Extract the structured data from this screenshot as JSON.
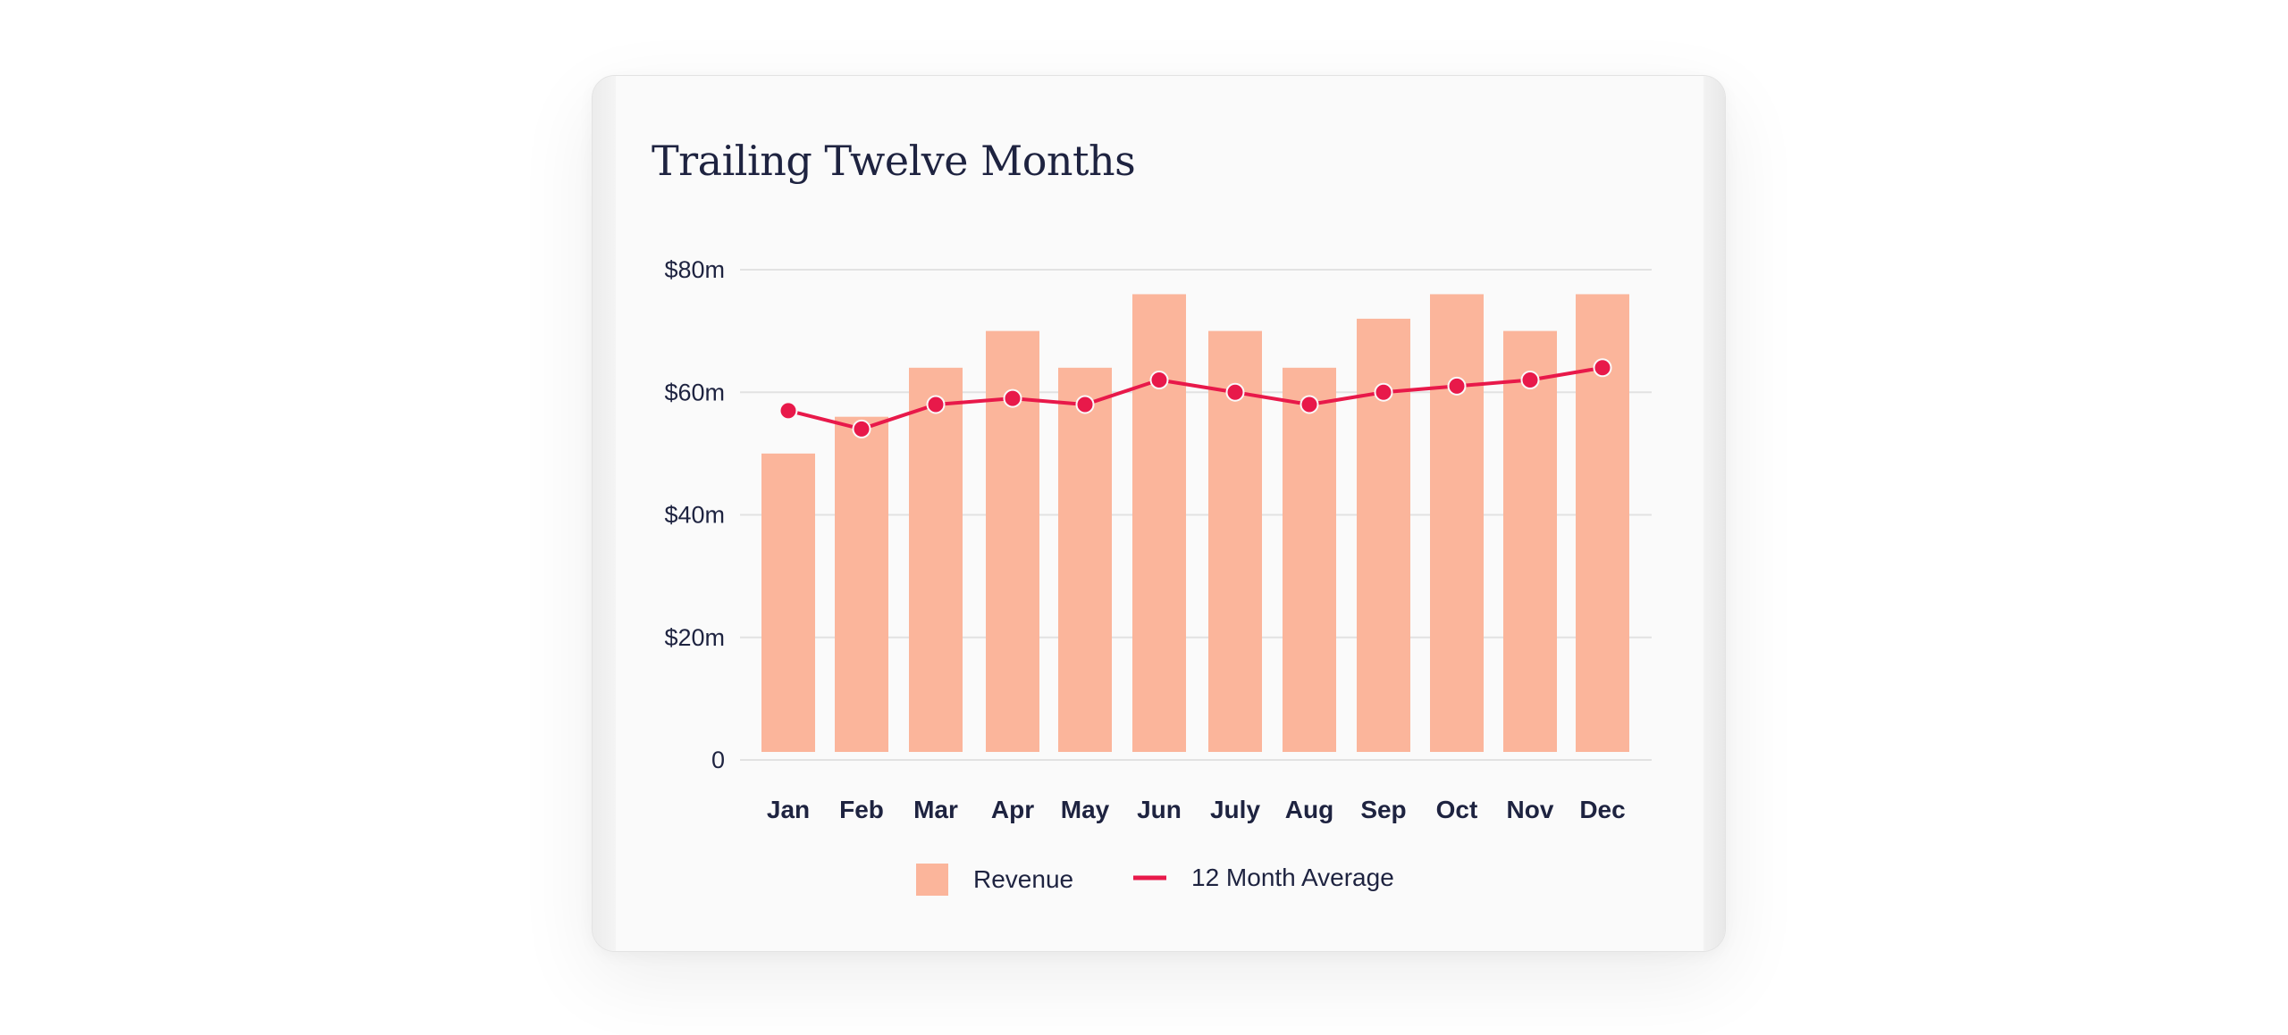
{
  "colors": {
    "revenue": "#fbb59b",
    "average": "#e8194a",
    "grid": "#e2e2e2",
    "text": "#1e2340"
  },
  "chart_data": {
    "type": "bar",
    "title": "Trailing Twelve Months",
    "xlabel": "",
    "ylabel": "",
    "categories": [
      "Jan",
      "Feb",
      "Mar",
      "Apr",
      "May",
      "Jun",
      "July",
      "Aug",
      "Sep",
      "Oct",
      "Nov",
      "Dec"
    ],
    "ylim": [
      0,
      80
    ],
    "y_ticks": [
      0,
      20,
      40,
      60,
      80
    ],
    "y_tick_labels": [
      "0",
      "$20m",
      "$40m",
      "$60m",
      "$80m"
    ],
    "grid": true,
    "legend_position": "bottom",
    "series": [
      {
        "name": "Revenue",
        "type": "bar",
        "values": [
          50,
          56,
          64,
          70,
          64,
          76,
          70,
          64,
          72,
          76,
          70,
          76
        ]
      },
      {
        "name": "12 Month Average",
        "type": "line",
        "values": [
          57,
          54,
          58,
          59,
          58,
          62,
          60,
          58,
          60,
          61,
          62,
          64
        ]
      }
    ]
  }
}
